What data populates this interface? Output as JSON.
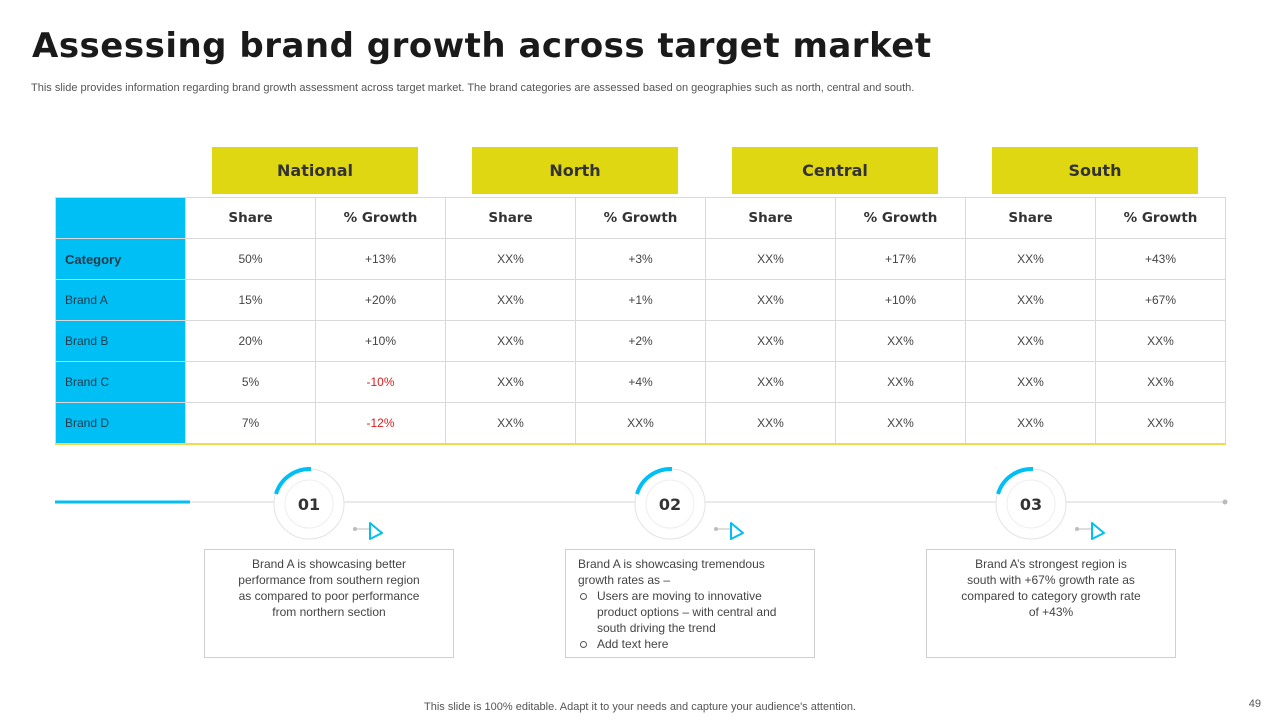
{
  "title": "Assessing brand growth across target market",
  "subtitle": "This slide provides information regarding brand growth assessment across target market. The brand categories are assessed based on geographies such as north, central and south.",
  "regions": [
    "National",
    "North",
    "Central",
    "South"
  ],
  "column_headers": [
    "Share",
    "% Growth",
    "Share",
    "% Growth",
    "Share",
    "% Growth",
    "Share",
    "% Growth"
  ],
  "rows": [
    {
      "label": "Category",
      "cells": [
        "50%",
        "+13%",
        "XX%",
        "+3%",
        "XX%",
        "+17%",
        "XX%",
        "+43%"
      ]
    },
    {
      "label": "Brand A",
      "cells": [
        "15%",
        "+20%",
        "XX%",
        "+1%",
        "XX%",
        "+10%",
        "XX%",
        "+67%"
      ]
    },
    {
      "label": "Brand B",
      "cells": [
        "20%",
        "+10%",
        "XX%",
        "+2%",
        "XX%",
        "XX%",
        "XX%",
        "XX%"
      ]
    },
    {
      "label": "Brand C",
      "cells": [
        "5%",
        "-10%",
        "XX%",
        "+4%",
        "XX%",
        "XX%",
        "XX%",
        "XX%"
      ]
    },
    {
      "label": "Brand D",
      "cells": [
        "7%",
        "-12%",
        "XX%",
        "XX%",
        "XX%",
        "XX%",
        "XX%",
        "XX%"
      ]
    }
  ],
  "steps": [
    {
      "number": "01"
    },
    {
      "number": "02"
    },
    {
      "number": "03"
    }
  ],
  "notes": {
    "note1": "Brand A is showcasing better performance from southern region as compared to poor performance from northern section",
    "note2_intro": "Brand A is showcasing tremendous growth rates as –",
    "note2_bullets": [
      "Users are moving to innovative product options – with central and south driving the trend",
      "Add text here"
    ],
    "note3": "Brand A’s strongest region is south with +67% growth rate as compared to category growth rate of +43%"
  },
  "footer": "This slide is 100% editable. Adapt it to your needs and capture your audience's attention.",
  "page_number": "49",
  "colors": {
    "accent_yellow": "#dfd712",
    "accent_blue": "#00bff5",
    "negative": "#e01a1a"
  }
}
